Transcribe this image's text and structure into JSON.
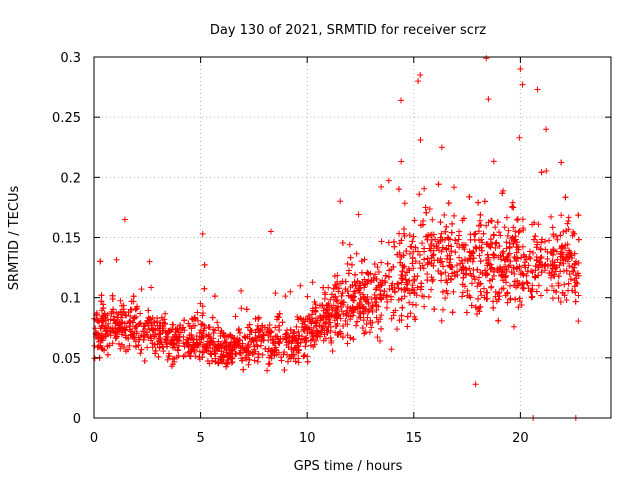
{
  "chart_data": {
    "type": "scatter",
    "title": "Day 130 of 2021, SRMTID for receiver scrz",
    "xlabel": "GPS time / hours",
    "ylabel": "SRMTID / TECUs",
    "xlim": [
      0,
      24.25
    ],
    "ylim": [
      0,
      0.3
    ],
    "xticks": [
      0,
      5,
      10,
      15,
      20
    ],
    "yticks": [
      0,
      0.05,
      0.1,
      0.15,
      0.2,
      0.25,
      0.3
    ],
    "xtick_labels": [
      "0",
      "5",
      "10",
      "15",
      "20"
    ],
    "ytick_labels": [
      "0",
      "0.05",
      "0.1",
      "0.15",
      "0.2",
      "0.25",
      "0.3"
    ],
    "grid": true,
    "marker": "+",
    "color": "#ff0000",
    "series": [
      {
        "name": "SRMTID",
        "trend_hours": [
          0,
          1,
          2,
          3,
          4,
          5,
          6,
          7,
          8,
          9,
          10,
          11,
          12,
          13,
          14,
          15,
          16,
          17,
          18,
          19,
          20,
          21,
          22,
          22.75
        ],
        "trend_median": [
          0.072,
          0.078,
          0.075,
          0.07,
          0.064,
          0.068,
          0.056,
          0.06,
          0.066,
          0.06,
          0.072,
          0.085,
          0.095,
          0.102,
          0.115,
          0.125,
          0.135,
          0.13,
          0.13,
          0.125,
          0.13,
          0.13,
          0.13,
          0.12
        ],
        "trend_spread": [
          0.022,
          0.022,
          0.02,
          0.02,
          0.018,
          0.02,
          0.014,
          0.016,
          0.018,
          0.018,
          0.024,
          0.026,
          0.028,
          0.03,
          0.038,
          0.045,
          0.04,
          0.04,
          0.045,
          0.04,
          0.04,
          0.035,
          0.035,
          0.035
        ],
        "notable_points": [
          {
            "x": 18.4,
            "y": 0.299
          },
          {
            "x": 20.0,
            "y": 0.29
          },
          {
            "x": 15.3,
            "y": 0.285
          },
          {
            "x": 15.2,
            "y": 0.28
          },
          {
            "x": 20.1,
            "y": 0.277
          },
          {
            "x": 18.5,
            "y": 0.265
          },
          {
            "x": 14.4,
            "y": 0.264
          },
          {
            "x": 20.8,
            "y": 0.273
          },
          {
            "x": 1.45,
            "y": 0.165
          },
          {
            "x": 5.1,
            "y": 0.153
          },
          {
            "x": 8.3,
            "y": 0.155
          },
          {
            "x": 17.9,
            "y": 0.028
          },
          {
            "x": 20.6,
            "y": 0.0
          },
          {
            "x": 22.6,
            "y": 0.0
          }
        ]
      }
    ]
  }
}
